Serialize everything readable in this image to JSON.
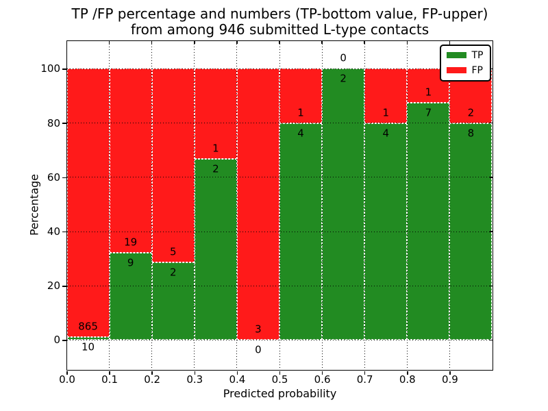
{
  "chart_data": {
    "type": "bar",
    "stacked": true,
    "normalized_to_percent": true,
    "title_line1": "TP /FP percentage and numbers (TP-bottom value, FP-upper)",
    "title_line2": "from among 946 submitted L-type contacts",
    "xlabel": "Predicted probability",
    "ylabel": "Percentage",
    "x_tick_labels": [
      "0.0",
      "0.1",
      "0.2",
      "0.3",
      "0.4",
      "0.5",
      "0.6",
      "0.7",
      "0.8",
      "0.9"
    ],
    "y_ticks": [
      0,
      20,
      40,
      60,
      80,
      100
    ],
    "xlim": [
      0.0,
      1.0
    ],
    "ylim_display": [
      -10.9,
      110.4
    ],
    "grid": "dotted",
    "legend": {
      "position": "top-right",
      "entries": [
        {
          "label": "TP",
          "color": "#228b22"
        },
        {
          "label": "FP",
          "color": "#ff1a1a"
        }
      ]
    },
    "bins": [
      {
        "x_start": 0.0,
        "x_end": 0.1,
        "tp": 10,
        "fp": 865,
        "tp_pct": 1.14
      },
      {
        "x_start": 0.1,
        "x_end": 0.2,
        "tp": 9,
        "fp": 19,
        "tp_pct": 32.14
      },
      {
        "x_start": 0.2,
        "x_end": 0.3,
        "tp": 2,
        "fp": 5,
        "tp_pct": 28.57
      },
      {
        "x_start": 0.3,
        "x_end": 0.4,
        "tp": 2,
        "fp": 1,
        "tp_pct": 66.67
      },
      {
        "x_start": 0.4,
        "x_end": 0.5,
        "tp": 0,
        "fp": 3,
        "tp_pct": 0.0
      },
      {
        "x_start": 0.5,
        "x_end": 0.6,
        "tp": 4,
        "fp": 1,
        "tp_pct": 80.0
      },
      {
        "x_start": 0.6,
        "x_end": 0.7,
        "tp": 2,
        "fp": 0,
        "tp_pct": 100.0
      },
      {
        "x_start": 0.7,
        "x_end": 0.8,
        "tp": 4,
        "fp": 1,
        "tp_pct": 80.0
      },
      {
        "x_start": 0.8,
        "x_end": 0.9,
        "tp": 7,
        "fp": 1,
        "tp_pct": 87.5
      },
      {
        "x_start": 0.9,
        "x_end": 1.0,
        "tp": 8,
        "fp": 2,
        "tp_pct": 80.0
      }
    ],
    "colors": {
      "tp": "#228b22",
      "fp": "#ff1a1a",
      "grid": "#000000",
      "bar_edge": "#ffffff",
      "background": "#ffffff"
    }
  }
}
